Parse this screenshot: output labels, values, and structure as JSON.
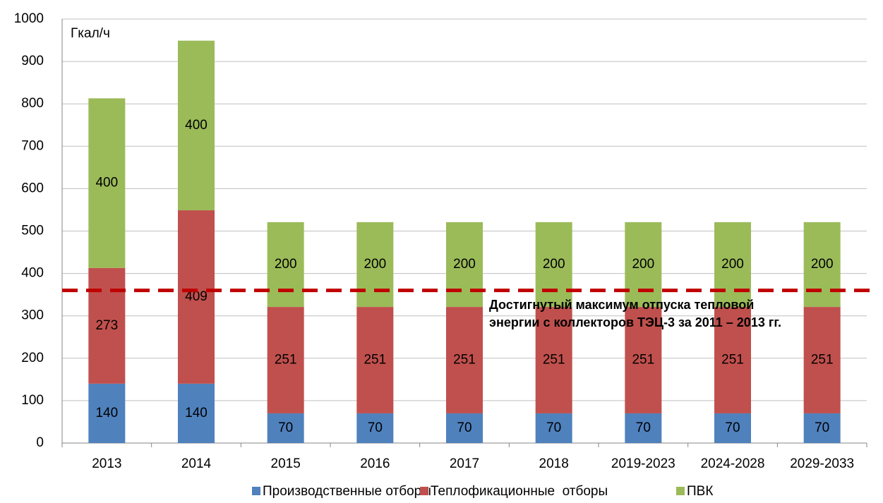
{
  "chart_data": {
    "type": "stacked_bar",
    "y_unit_label": "Гкал/ч",
    "categories": [
      "2013",
      "2014",
      "2015",
      "2016",
      "2017",
      "2018",
      "2019-2023",
      "2024-2028",
      "2029-2033"
    ],
    "series": [
      {
        "name": "Производственные отборы",
        "color": "#4f81bd",
        "values": [
          140,
          140,
          70,
          70,
          70,
          70,
          70,
          70,
          70
        ]
      },
      {
        "name": "Теплофикационные  отборы",
        "color": "#c0504d",
        "values": [
          273,
          409,
          251,
          251,
          251,
          251,
          251,
          251,
          251
        ]
      },
      {
        "name": "ПВК",
        "color": "#9bbb59",
        "values": [
          400,
          400,
          200,
          200,
          200,
          200,
          200,
          200,
          200
        ]
      }
    ],
    "reference_line": {
      "value": 360,
      "color": "#c00000",
      "label": [
        "Достигнутый максимум отпуска тепловой",
        "энергии с коллекторов ТЭЦ-3 за 2011 – 2013 гг."
      ]
    },
    "ylim": [
      0,
      1000
    ],
    "yticks": [
      0,
      100,
      200,
      300,
      400,
      500,
      600,
      700,
      800,
      900,
      1000
    ],
    "grid": true,
    "legend": "bottom"
  }
}
